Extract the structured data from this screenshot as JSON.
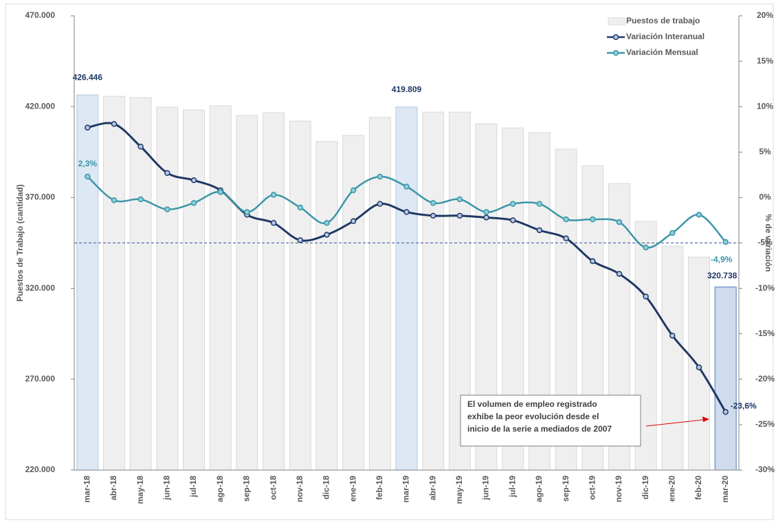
{
  "chart_data": {
    "type": "bar-line",
    "y_label": "Puestos de Trabajo (cantidad)",
    "y2_label": "% de variación",
    "annotation": [
      "El volumen de empleo registrado",
      "exhibe la peor evolución desde el",
      "inicio de la serie a mediados de 2007"
    ],
    "categories": [
      "mar-18",
      "abr-18",
      "may-18",
      "jun-18",
      "jul-18",
      "ago-18",
      "sep-18",
      "oct-18",
      "nov-18",
      "dic-18",
      "ene-19",
      "feb-19",
      "mar-19",
      "abr-19",
      "may-19",
      "jun-19",
      "jul-19",
      "ago-19",
      "sep-19",
      "oct-19",
      "nov-19",
      "dic-19",
      "ene-20",
      "feb-20",
      "mar-20"
    ],
    "series": [
      {
        "name": "Puestos de trabajo",
        "type": "bar",
        "color": "#efefef",
        "colors": [
          "#dde8f4",
          "#efefef",
          "#efefef",
          "#efefef",
          "#efefef",
          "#efefef",
          "#efefef",
          "#efefef",
          "#efefef",
          "#efefef",
          "#efefef",
          "#efefef",
          "#dde8f4",
          "#efefef",
          "#efefef",
          "#efefef",
          "#efefef",
          "#efefef",
          "#efefef",
          "#efefef",
          "#efefef",
          "#efefef",
          "#efefef",
          "#efefef",
          "#cfdced"
        ],
        "values": [
          426446,
          425700,
          425000,
          419800,
          418200,
          420500,
          415200,
          416700,
          412100,
          400800,
          404200,
          414100,
          419809,
          417000,
          417000,
          410600,
          408300,
          405700,
          396600,
          387500,
          377700,
          356900,
          343300,
          337200,
          320738
        ],
        "value_labels": [
          "426.446",
          null,
          null,
          null,
          null,
          null,
          null,
          null,
          null,
          null,
          null,
          null,
          "419.809",
          null,
          null,
          null,
          null,
          null,
          null,
          null,
          null,
          null,
          null,
          null,
          "320.738"
        ]
      },
      {
        "name": "Variación Interanual",
        "type": "line",
        "axis": "y2",
        "color": "#1f3864",
        "values": [
          7.7,
          8.1,
          5.6,
          2.7,
          1.9,
          0.8,
          -1.9,
          -2.8,
          -4.7,
          -4.1,
          -2.6,
          -0.7,
          -1.6,
          -2.0,
          -2.0,
          -2.2,
          -2.5,
          -3.6,
          -4.5,
          -7.0,
          -8.4,
          -10.9,
          -15.2,
          -18.7,
          -23.6
        ],
        "value_labels": [
          null,
          null,
          null,
          null,
          null,
          null,
          null,
          null,
          null,
          null,
          null,
          null,
          null,
          null,
          null,
          null,
          null,
          null,
          null,
          null,
          null,
          null,
          null,
          null,
          "-23,6%"
        ]
      },
      {
        "name": "Variación Mensual",
        "type": "line",
        "axis": "y2",
        "color": "#3a95a8",
        "values": [
          2.3,
          -0.3,
          -0.2,
          -1.3,
          -0.6,
          0.6,
          -1.6,
          0.3,
          -1.1,
          -2.8,
          0.8,
          2.3,
          1.2,
          -0.6,
          -0.2,
          -1.6,
          -0.7,
          -0.7,
          -2.4,
          -2.4,
          -2.7,
          -5.5,
          -3.9,
          -1.9,
          -4.9
        ],
        "value_labels": [
          "2,3%",
          null,
          null,
          null,
          null,
          null,
          null,
          null,
          null,
          null,
          null,
          null,
          null,
          null,
          null,
          null,
          null,
          null,
          null,
          null,
          null,
          null,
          null,
          null,
          "-4,9%"
        ]
      }
    ],
    "reference_line": -5,
    "ylim": [
      220000,
      470000
    ],
    "yticks": [
      {
        "value": 220000,
        "label": "220.000"
      },
      {
        "value": 270000,
        "label": "270.000"
      },
      {
        "value": 320000,
        "label": "320.000"
      },
      {
        "value": 370000,
        "label": "370.000"
      },
      {
        "value": 420000,
        "label": "420.000"
      },
      {
        "value": 470000,
        "label": "470.000"
      }
    ],
    "y2lim": [
      -30,
      20
    ],
    "y2ticks": [
      {
        "value": -30,
        "label": "-30%"
      },
      {
        "value": -25,
        "label": "-25%"
      },
      {
        "value": -20,
        "label": "-20%"
      },
      {
        "value": -15,
        "label": "-15%"
      },
      {
        "value": -10,
        "label": "-10%"
      },
      {
        "value": -5,
        "label": "-5%"
      },
      {
        "value": 0,
        "label": "0%"
      },
      {
        "value": 5,
        "label": "5%"
      },
      {
        "value": 10,
        "label": "10%"
      },
      {
        "value": 15,
        "label": "15%"
      },
      {
        "value": 20,
        "label": "20%"
      }
    ],
    "legend": "top-right"
  }
}
